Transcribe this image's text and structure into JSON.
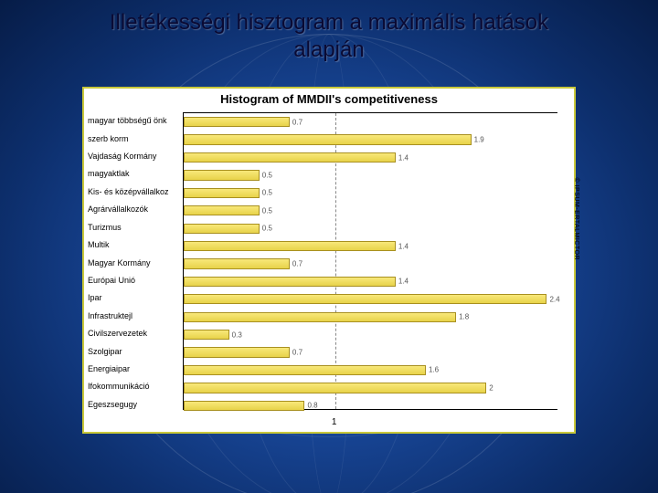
{
  "slide": {
    "title_line1": "Illetékességi hisztogram a maximális hatások",
    "title_line2": "alapján",
    "title_color": "#0a0a33",
    "title_fontsize": 24
  },
  "background": {
    "gradient_inner": "#2a5db8",
    "gradient_mid": "#1a4a9e",
    "gradient_outer": "#061c47"
  },
  "chart": {
    "type": "bar",
    "orientation": "horizontal",
    "title": "Histogram of MMDII's competitiveness",
    "title_fontsize": 13,
    "title_fontweight": "bold",
    "frame_bg": "#ffffff",
    "frame_border": "#c9c93a",
    "bar_fill_top": "#f8e87a",
    "bar_fill_bottom": "#e8d34a",
    "bar_border": "#a89020",
    "label_fontsize": 9,
    "value_fontsize": 8,
    "value_color": "#555555",
    "xlim": [
      0,
      2.5
    ],
    "reference_line": 1,
    "reference_line_color": "#888888",
    "x_ticks": [
      1
    ],
    "watermark": "© IPSUM-ERTALMICTOR",
    "categories": [
      "magyar többségű önk",
      "szerb korm",
      "Vajdaság Kormány",
      "magyaktlak",
      "Kis- és középvállalkoz",
      "Agrárvállalkozók",
      "Turizmus",
      "Multik",
      "Magyar Kormány",
      "Európai Unió",
      "Ipar",
      "Infrastruktejl",
      "Civilszervezetek",
      "Szolgipar",
      "Energiaipar",
      "Ifokommunikáció",
      "Egeszsegugy"
    ],
    "values": [
      0.7,
      1.9,
      1.4,
      0.5,
      0.5,
      0.5,
      0.5,
      1.4,
      0.7,
      1.4,
      2.4,
      1.8,
      0.3,
      0.7,
      1.6,
      2.0,
      0.8
    ]
  }
}
